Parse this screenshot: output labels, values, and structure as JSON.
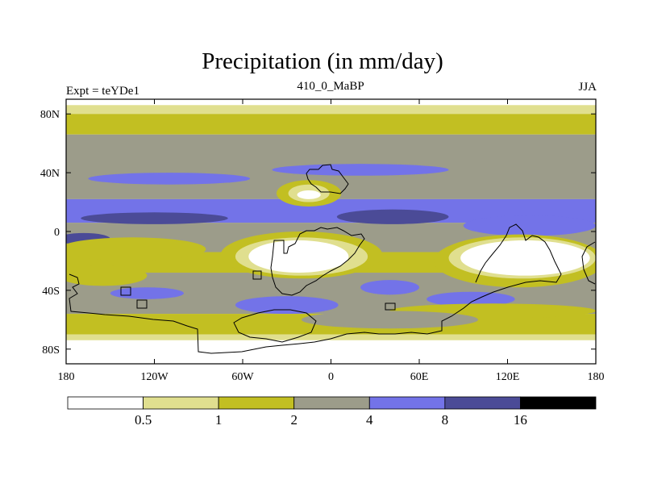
{
  "chart_data": {
    "type": "heatmap",
    "title": "Precipitation (in mm/day)",
    "left_label": "Expt = teYDe1",
    "center_label": "410_0_MaBP",
    "right_label": "JJA",
    "x_ticks": [
      {
        "value": -180,
        "label": "180"
      },
      {
        "value": -120,
        "label": "120W"
      },
      {
        "value": -60,
        "label": "60W"
      },
      {
        "value": 0,
        "label": "0"
      },
      {
        "value": 60,
        "label": "60E"
      },
      {
        "value": 120,
        "label": "120E"
      },
      {
        "value": 180,
        "label": "180"
      }
    ],
    "y_ticks": [
      {
        "value": 80,
        "label": "80N"
      },
      {
        "value": 40,
        "label": "40N"
      },
      {
        "value": 0,
        "label": "0"
      },
      {
        "value": -40,
        "label": "40S"
      },
      {
        "value": -80,
        "label": "80S"
      }
    ],
    "xlim": [
      -180,
      180
    ],
    "ylim": [
      -90,
      90
    ],
    "colorbar": {
      "levels": [
        "0.5",
        "1",
        "2",
        "4",
        "8",
        "16"
      ],
      "colors": [
        "#ffffff",
        "#e0df8f",
        "#c2bf22",
        "#9c9c8a",
        "#7373e8",
        "#4b4b97",
        "#000000"
      ]
    },
    "bands": [
      {
        "lat_top": 90,
        "lat_bottom": 86,
        "level": 0
      },
      {
        "lat_top": 86,
        "lat_bottom": 80,
        "level": 1
      },
      {
        "lat_top": 80,
        "lat_bottom": 66,
        "level": 2
      },
      {
        "lat_top": 66,
        "lat_bottom": 22,
        "level": 3
      },
      {
        "lat_top": 22,
        "lat_bottom": 6,
        "level": 4
      },
      {
        "lat_top": 6,
        "lat_bottom": -14,
        "level": 3
      },
      {
        "lat_top": -14,
        "lat_bottom": -28,
        "level": 2
      },
      {
        "lat_top": -28,
        "lat_bottom": -56,
        "level": 3
      },
      {
        "lat_top": -56,
        "lat_bottom": -70,
        "level": 2
      },
      {
        "lat_top": -70,
        "lat_bottom": -74,
        "level": 1
      },
      {
        "lat_top": -74,
        "lat_bottom": -90,
        "level": 0
      }
    ],
    "regions": [
      {
        "name": "nh-midlat-wave-band",
        "level": 4,
        "lon": -110,
        "lat": 36,
        "rlon": 55,
        "rlat": 4
      },
      {
        "name": "nh-midlat-wave-band-2",
        "level": 4,
        "lon": 20,
        "lat": 42,
        "rlon": 60,
        "rlat": 4
      },
      {
        "name": "subtropical-yellow-north",
        "level": 2,
        "lon": -15,
        "lat": 26,
        "rlon": 22,
        "rlat": 9
      },
      {
        "name": "subtropical-pale-north",
        "level": 1,
        "lon": -15,
        "lat": 26,
        "rlon": 14,
        "rlat": 6
      },
      {
        "name": "subtropical-white-north",
        "level": 0,
        "lon": -15,
        "lat": 25,
        "rlon": 8,
        "rlat": 3
      },
      {
        "name": "itcz-dark-east-pacific",
        "level": 5,
        "lon": -120,
        "lat": 9,
        "rlon": 50,
        "rlat": 4
      },
      {
        "name": "itcz-dark-atlantic",
        "level": 5,
        "lon": 42,
        "lat": 10,
        "rlon": 38,
        "rlat": 5
      },
      {
        "name": "itcz-dark-west",
        "level": 5,
        "lon": -168,
        "lat": -5,
        "rlon": 18,
        "rlat": 4
      },
      {
        "name": "eq-blue-east",
        "level": 4,
        "lon": 135,
        "lat": 4,
        "rlon": 45,
        "rlat": 7
      },
      {
        "name": "sh-yellow-pacific",
        "level": 2,
        "lon": -135,
        "lat": -12,
        "rlon": 50,
        "rlat": 8
      },
      {
        "name": "sh-yellow-pacific-2",
        "level": 2,
        "lon": -155,
        "lat": -30,
        "rlon": 30,
        "rlat": 7
      },
      {
        "name": "sh-yellow-africa",
        "level": 2,
        "lon": -20,
        "lat": -16,
        "rlon": 55,
        "rlat": 16
      },
      {
        "name": "sh-pale-africa",
        "level": 1,
        "lon": -20,
        "lat": -17,
        "rlon": 45,
        "rlat": 13
      },
      {
        "name": "sh-white-africa",
        "level": 0,
        "lon": -22,
        "lat": -17,
        "rlon": 34,
        "rlat": 11
      },
      {
        "name": "sh-yellow-australia",
        "level": 2,
        "lon": 128,
        "lat": -20,
        "rlon": 58,
        "rlat": 18
      },
      {
        "name": "sh-pale-australia",
        "level": 1,
        "lon": 130,
        "lat": -18,
        "rlon": 50,
        "rlat": 14
      },
      {
        "name": "sh-white-australia",
        "level": 0,
        "lon": 132,
        "lat": -18,
        "rlon": 44,
        "rlat": 12
      },
      {
        "name": "sh-blue-patch-indian",
        "level": 4,
        "lon": 95,
        "lat": -46,
        "rlon": 30,
        "rlat": 5
      },
      {
        "name": "sh-blue-patch-atlantic",
        "level": 4,
        "lon": -30,
        "lat": -50,
        "rlon": 35,
        "rlat": 6
      },
      {
        "name": "sh-blue-patch-pacific",
        "level": 4,
        "lon": -125,
        "lat": -42,
        "rlon": 25,
        "rlat": 4
      },
      {
        "name": "sh-blue-patch-africa",
        "level": 4,
        "lon": 40,
        "lat": -38,
        "rlon": 20,
        "rlat": 5
      },
      {
        "name": "sh-yellow-south-fringe",
        "level": 2,
        "lon": 110,
        "lat": -54,
        "rlon": 70,
        "rlat": 5
      },
      {
        "name": "sh-grey-south",
        "level": 3,
        "lon": 40,
        "lat": -60,
        "rlon": 60,
        "rlat": 6
      }
    ]
  }
}
